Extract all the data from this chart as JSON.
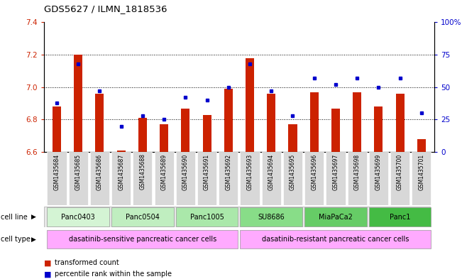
{
  "title": "GDS5627 / ILMN_1818536",
  "samples": [
    "GSM1435684",
    "GSM1435685",
    "GSM1435686",
    "GSM1435687",
    "GSM1435688",
    "GSM1435689",
    "GSM1435690",
    "GSM1435691",
    "GSM1435692",
    "GSM1435693",
    "GSM1435694",
    "GSM1435695",
    "GSM1435696",
    "GSM1435697",
    "GSM1435698",
    "GSM1435699",
    "GSM1435700",
    "GSM1435701"
  ],
  "transformed_count": [
    6.88,
    7.2,
    6.96,
    6.61,
    6.81,
    6.77,
    6.87,
    6.83,
    6.99,
    7.18,
    6.96,
    6.77,
    6.97,
    6.87,
    6.97,
    6.88,
    6.96,
    6.68
  ],
  "percentile_rank": [
    38,
    68,
    47,
    20,
    28,
    25,
    42,
    40,
    50,
    68,
    47,
    28,
    57,
    52,
    57,
    50,
    57,
    30
  ],
  "ylim_left": [
    6.6,
    7.4
  ],
  "ylim_right": [
    0,
    100
  ],
  "yticks_left": [
    6.6,
    6.8,
    7.0,
    7.2,
    7.4
  ],
  "yticks_right": [
    0,
    25,
    50,
    75,
    100
  ],
  "ytick_labels_right": [
    "0",
    "25",
    "50",
    "75",
    "100%"
  ],
  "bar_color": "#cc2200",
  "dot_color": "#0000cc",
  "bar_width": 0.4,
  "cell_line_colors": [
    "#d4f4d4",
    "#c0eec0",
    "#aae8aa",
    "#88dd88",
    "#66cc66",
    "#44bb44"
  ],
  "cell_type_colors": [
    "#ffaaff",
    "#ffaaff"
  ],
  "grid_color": "black",
  "grid_style": "dotted",
  "cell_lines": [
    {
      "label": "Panc0403",
      "start": 0,
      "end": 2
    },
    {
      "label": "Panc0504",
      "start": 3,
      "end": 5
    },
    {
      "label": "Panc1005",
      "start": 6,
      "end": 8
    },
    {
      "label": "SU8686",
      "start": 9,
      "end": 11
    },
    {
      "label": "MiaPaCa2",
      "start": 12,
      "end": 14
    },
    {
      "label": "Panc1",
      "start": 15,
      "end": 17
    }
  ],
  "cell_type_groups": [
    {
      "label": "dasatinib-sensitive pancreatic cancer cells",
      "start": 0,
      "end": 8
    },
    {
      "label": "dasatinib-resistant pancreatic cancer cells",
      "start": 9,
      "end": 17
    }
  ]
}
